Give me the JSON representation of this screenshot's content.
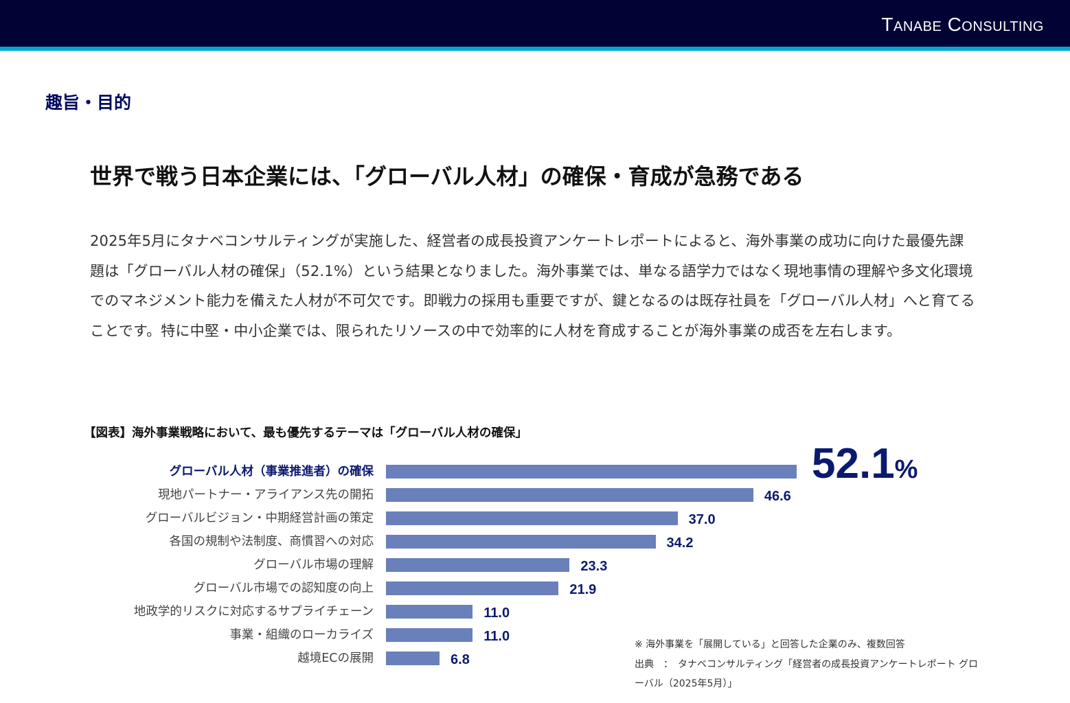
{
  "header": {
    "logo": "Tanabe Consulting",
    "bg_color": "#010334",
    "stripe_color": "#03a9d3"
  },
  "section_label": "趣旨・目的",
  "headline": "世界で戦う日本企業には、「グローバル人材」の確保・育成が急務である",
  "body": "2025年5月にタナベコンサルティングが実施した、経営者の成長投資アンケートレポートによると、海外事業の成功に向けた最優先課題は「グローバル人材の確保」（52.1%）という結果となりました。海外事業では、単なる語学力ではなく現地事情の理解や多文化環境でのマネジメント能力を備えた人材が不可欠です。即戦力の採用も重要ですが、鍵となるのは既存社員を「グローバル人材」へと育てることです。特に中堅・中小企業では、限られたリソースの中で効率的に人材を育成することが海外事業の成否を左右します。",
  "chart_data": {
    "type": "bar",
    "title": "【図表】海外事業戦略において、最も優先するテーマは「グローバル人材の確保」",
    "categories": [
      "グローバル人材（事業推進者）の確保",
      "現地パートナー・アライアンス先の開拓",
      "グローバルビジョン・中期経営計画の策定",
      "各国の規制や法制度、商慣習への対応",
      "グローバル市場の理解",
      "グローバル市場での認知度の向上",
      "地政学的リスクに対応するサプライチェーン",
      "事業・組織のローカライズ",
      "越境ECの展開"
    ],
    "values": [
      52.1,
      46.6,
      37.0,
      34.2,
      23.3,
      21.9,
      11.0,
      11.0,
      6.8
    ],
    "value_labels": [
      "52.1",
      "46.6",
      "37.0",
      "34.2",
      "23.3",
      "21.9",
      "11.0",
      "11.0",
      "6.8"
    ],
    "highlight": {
      "number": "52.1",
      "unit": "%"
    },
    "bar_color": "#6a80bb",
    "xlim": [
      0,
      52.1
    ]
  },
  "notes": [
    "※ 海外事業を「展開している」と回答した企業のみ、複数回答",
    "出典　：　タナベコンサルティング「経営者の成長投資アンケートレポート グローバル（2025年5月）」"
  ]
}
